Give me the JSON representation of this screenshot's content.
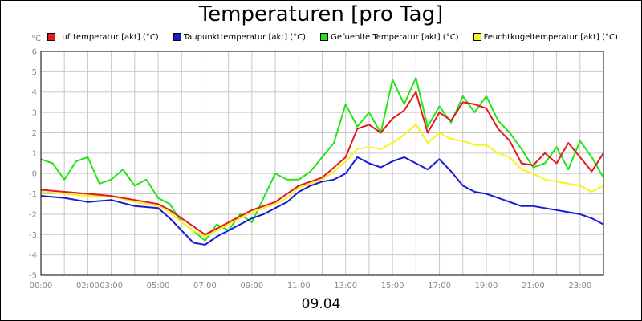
{
  "chart_data": {
    "type": "line",
    "title": "Temperaturen [pro Tag]",
    "ylabel": "°C",
    "xlabel": "09.04",
    "ylim": [
      -5,
      6
    ],
    "xlim": [
      "00:00",
      "24:00"
    ],
    "grid": true,
    "legend_placement": "top",
    "yticks": [
      "-5",
      "-4",
      "-3",
      "-2",
      "-1",
      "0",
      "1",
      "2",
      "3",
      "4",
      "5",
      "6"
    ],
    "xticks": [
      "00:00",
      "02:00",
      "03:00",
      "05:00",
      "07:00",
      "09:00",
      "11:00",
      "13:00",
      "15:00",
      "17:00",
      "19:00",
      "21:00",
      "23:00"
    ],
    "series": [
      {
        "name": "Lufttemperatur [akt] (°C)",
        "color": "#e41a1c",
        "x": [
          "00:00",
          "01:00",
          "02:00",
          "03:00",
          "04:00",
          "05:00",
          "05:30",
          "06:00",
          "06:30",
          "07:00",
          "07:30",
          "08:00",
          "08:30",
          "09:00",
          "09:30",
          "10:00",
          "10:30",
          "11:00",
          "11:30",
          "12:00",
          "12:30",
          "13:00",
          "13:30",
          "14:00",
          "14:30",
          "15:00",
          "15:30",
          "16:00",
          "16:30",
          "17:00",
          "17:30",
          "18:00",
          "18:30",
          "19:00",
          "19:30",
          "20:00",
          "20:30",
          "21:00",
          "21:30",
          "22:00",
          "22:30",
          "23:00",
          "23:30",
          "24:00"
        ],
        "values": [
          -0.8,
          -0.9,
          -1.0,
          -1.1,
          -1.3,
          -1.5,
          -1.8,
          -2.2,
          -2.6,
          -3.0,
          -2.7,
          -2.4,
          -2.1,
          -1.8,
          -1.6,
          -1.4,
          -1.0,
          -0.6,
          -0.4,
          -0.2,
          0.3,
          0.8,
          2.2,
          2.4,
          2.0,
          2.7,
          3.1,
          4.0,
          2.0,
          3.0,
          2.6,
          3.5,
          3.4,
          3.2,
          2.2,
          1.6,
          0.5,
          0.4,
          1.0,
          0.5,
          1.5,
          0.8,
          0.1,
          1.0
        ]
      },
      {
        "name": "Taupunkttemperatur [akt] (°C)",
        "color": "#1a1ad4",
        "x": [
          "00:00",
          "01:00",
          "02:00",
          "03:00",
          "04:00",
          "05:00",
          "05:30",
          "06:00",
          "06:30",
          "07:00",
          "07:30",
          "08:00",
          "08:30",
          "09:00",
          "09:30",
          "10:00",
          "10:30",
          "11:00",
          "11:30",
          "12:00",
          "12:30",
          "13:00",
          "13:30",
          "14:00",
          "14:30",
          "15:00",
          "15:30",
          "16:00",
          "16:30",
          "17:00",
          "17:30",
          "18:00",
          "18:30",
          "19:00",
          "19:30",
          "20:00",
          "20:30",
          "21:00",
          "21:30",
          "22:00",
          "22:30",
          "23:00",
          "23:30",
          "24:00"
        ],
        "values": [
          -1.1,
          -1.2,
          -1.4,
          -1.3,
          -1.6,
          -1.7,
          -2.2,
          -2.8,
          -3.4,
          -3.5,
          -3.1,
          -2.8,
          -2.5,
          -2.2,
          -2.0,
          -1.7,
          -1.4,
          -0.9,
          -0.6,
          -0.4,
          -0.3,
          0.0,
          0.8,
          0.5,
          0.3,
          0.6,
          0.8,
          0.5,
          0.2,
          0.7,
          0.1,
          -0.6,
          -0.9,
          -1.0,
          -1.2,
          -1.4,
          -1.6,
          -1.6,
          -1.7,
          -1.8,
          -1.9,
          -2.0,
          -2.2,
          -2.5
        ]
      },
      {
        "name": "Gefuehlte Temperatur [akt] (°C)",
        "color": "#22e41a",
        "x": [
          "00:00",
          "00:30",
          "01:00",
          "01:30",
          "02:00",
          "02:30",
          "03:00",
          "03:30",
          "04:00",
          "04:30",
          "05:00",
          "05:30",
          "06:00",
          "06:30",
          "07:00",
          "07:30",
          "08:00",
          "08:30",
          "09:00",
          "09:30",
          "10:00",
          "10:30",
          "11:00",
          "11:30",
          "12:00",
          "12:30",
          "13:00",
          "13:30",
          "14:00",
          "14:30",
          "15:00",
          "15:30",
          "16:00",
          "16:30",
          "17:00",
          "17:30",
          "18:00",
          "18:30",
          "19:00",
          "19:30",
          "20:00",
          "20:30",
          "21:00",
          "21:30",
          "22:00",
          "22:30",
          "23:00",
          "23:30",
          "24:00"
        ],
        "values": [
          0.7,
          0.5,
          -0.3,
          0.6,
          0.8,
          -0.5,
          -0.3,
          0.2,
          -0.6,
          -0.3,
          -1.2,
          -1.5,
          -2.4,
          -2.8,
          -3.3,
          -2.5,
          -2.8,
          -2.0,
          -2.4,
          -1.2,
          0.0,
          -0.3,
          -0.3,
          0.1,
          0.8,
          1.5,
          3.4,
          2.3,
          3.0,
          2.0,
          4.6,
          3.4,
          4.7,
          2.3,
          3.3,
          2.5,
          3.8,
          3.0,
          3.8,
          2.6,
          2.0,
          1.2,
          0.3,
          0.5,
          1.3,
          0.2,
          1.6,
          0.8,
          -0.2
        ]
      },
      {
        "name": "Feuchtkugeltemperatur [akt] (°C)",
        "color": "#f5f51a",
        "x": [
          "00:00",
          "01:00",
          "02:00",
          "03:00",
          "04:00",
          "05:00",
          "05:30",
          "06:00",
          "06:30",
          "07:00",
          "07:30",
          "08:00",
          "08:30",
          "09:00",
          "09:30",
          "10:00",
          "10:30",
          "11:00",
          "11:30",
          "12:00",
          "12:30",
          "13:00",
          "13:30",
          "14:00",
          "14:30",
          "15:00",
          "15:30",
          "16:00",
          "16:30",
          "17:00",
          "17:30",
          "18:00",
          "18:30",
          "19:00",
          "19:30",
          "20:00",
          "20:30",
          "21:00",
          "21:30",
          "22:00",
          "22:30",
          "23:00",
          "23:30",
          "24:00"
        ],
        "values": [
          -0.9,
          -1.0,
          -1.1,
          -1.1,
          -1.4,
          -1.6,
          -1.9,
          -2.4,
          -2.8,
          -3.1,
          -2.8,
          -2.5,
          -2.2,
          -1.9,
          -1.7,
          -1.5,
          -1.2,
          -0.7,
          -0.5,
          -0.3,
          0.1,
          0.6,
          1.2,
          1.3,
          1.2,
          1.5,
          1.9,
          2.4,
          1.5,
          2.0,
          1.7,
          1.6,
          1.4,
          1.4,
          1.0,
          0.8,
          0.2,
          0.0,
          -0.3,
          -0.4,
          -0.5,
          -0.6,
          -0.9,
          -0.6
        ]
      }
    ]
  }
}
